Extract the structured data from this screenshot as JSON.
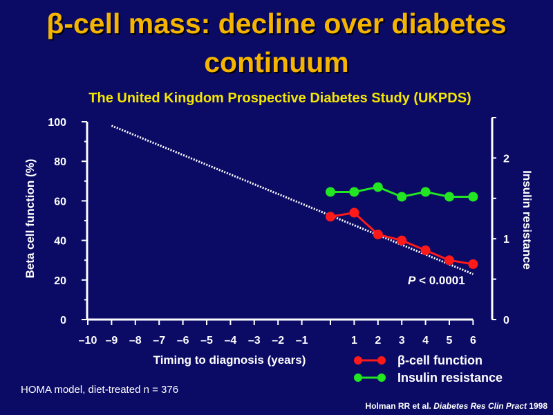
{
  "title_line1_symbol": "β",
  "title_line1_text": "-cell mass: decline over diabetes",
  "title_line2": "continuum",
  "subtitle": "The United Kingdom Prospective Diabetes Study (UKPDS)",
  "footnote": "HOMA model, diet-treated n = 376",
  "citation": {
    "authors": "Holman RR et al.",
    "journal": "Diabetes Res Clin Pract",
    "year": "1998"
  },
  "chart_data": {
    "type": "line",
    "xlabel": "Timing to diagnosis (years)",
    "ylabel_left": "Beta cell function (%)",
    "ylabel_right": "Insulin resistance",
    "x_ticks": [
      -10,
      -9,
      -8,
      -7,
      -6,
      -5,
      -4,
      -3,
      -2,
      -1,
      1,
      2,
      3,
      4,
      5,
      6
    ],
    "x_tick_labels": [
      "–10",
      "–9",
      "–8",
      "–7",
      "–6",
      "–5",
      "–4",
      "–3",
      "–2",
      "–1",
      "1",
      "2",
      "3",
      "4",
      "5",
      "6"
    ],
    "y_left_ticks": [
      0,
      20,
      40,
      60,
      80,
      100
    ],
    "y_left_lim": [
      0,
      100
    ],
    "y_right_ticks": [
      0,
      1,
      2
    ],
    "y_right_lim": [
      0,
      2.5
    ],
    "annotation": {
      "p": "P",
      "text": " < 0.0001"
    },
    "series": [
      {
        "name": "β-cell function",
        "axis": "left",
        "color": "#ff1a1a",
        "x": [
          0,
          1,
          2,
          3,
          4,
          5,
          6
        ],
        "y": [
          52,
          54,
          43,
          40,
          35,
          30,
          28
        ]
      },
      {
        "name": "Insulin resistance",
        "axis": "right",
        "color": "#22e622",
        "x": [
          0,
          1,
          2,
          3,
          4,
          5,
          6
        ],
        "y": [
          1.58,
          1.58,
          1.64,
          1.52,
          1.58,
          1.52,
          1.52
        ]
      }
    ],
    "trend_line": {
      "style": "dotted",
      "color": "#ffffff",
      "x": [
        -9,
        6
      ],
      "y": [
        98,
        23
      ]
    }
  }
}
